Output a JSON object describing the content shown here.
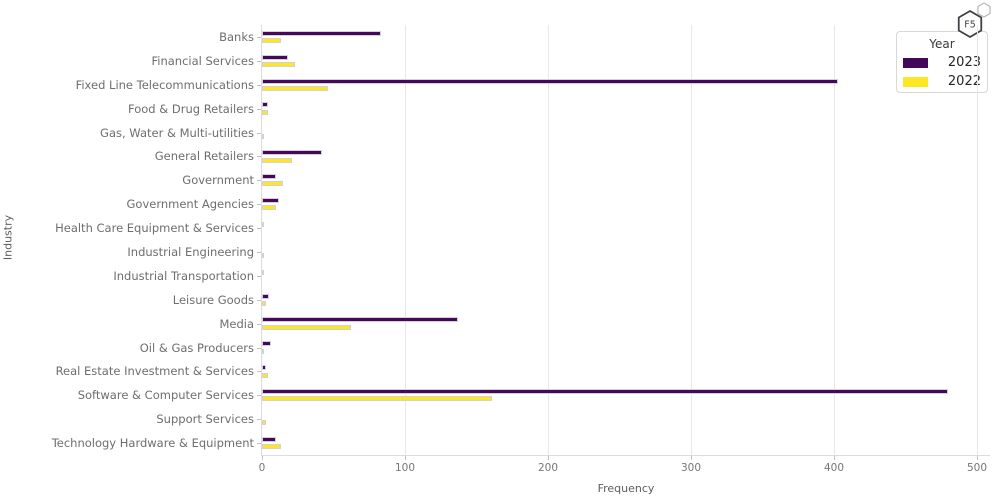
{
  "window": {
    "background": "#ffffff"
  },
  "chart_data": {
    "type": "bar",
    "orientation": "horizontal",
    "title": "",
    "xlabel": "Frequency",
    "ylabel": "Industry",
    "xlim": [
      0,
      500
    ],
    "xticks": [
      0,
      100,
      200,
      300,
      400,
      500
    ],
    "grid": "vertical-gridlines-on",
    "legend": {
      "title": "Year",
      "position": "top-right",
      "entries": [
        "2023",
        "2022"
      ]
    },
    "categories": [
      "Banks",
      "Financial Services",
      "Fixed Line Telecommunications",
      "Food & Drug Retailers",
      "Gas, Water & Multi-utilities",
      "General Retailers",
      "Government",
      "Government Agencies",
      "Health Care Equipment & Services",
      "Industrial Engineering",
      "Industrial Transportation",
      "Leisure Goods",
      "Media",
      "Oil & Gas Producers",
      "Real Estate Investment & Services",
      "Software & Computer Services",
      "Support Services",
      "Technology Hardware & Equipment"
    ],
    "series": [
      {
        "name": "2023",
        "color": "#45075a",
        "values": [
          83,
          18,
          403,
          4,
          0,
          42,
          10,
          12,
          1,
          0,
          1,
          5,
          137,
          6,
          3,
          480,
          0,
          10
        ]
      },
      {
        "name": "2022",
        "color": "#fde725",
        "values": [
          13,
          23,
          46,
          4,
          1,
          21,
          15,
          10,
          0,
          1,
          0,
          3,
          62,
          1,
          4,
          161,
          3,
          13
        ]
      }
    ],
    "colors": {
      "bar_edge": "#d4d0da",
      "grid": "#e8e8e8",
      "spine": "#dcdcdc",
      "tick": "#c2c2c2",
      "tick_label": "#767676",
      "category_label": "#6e6e6e",
      "axis_label": "#5c5c5c",
      "legend_border": "#d8d8d8",
      "legend_text": "#262626"
    }
  },
  "overlay_icon": {
    "label": "F5"
  }
}
